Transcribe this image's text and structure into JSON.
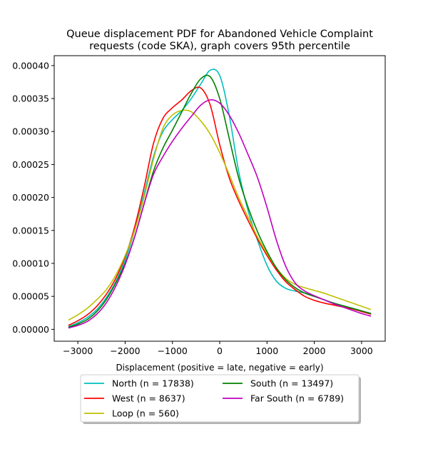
{
  "chart_data": {
    "type": "line",
    "title_line1": "Queue displacement PDF for Abandoned Vehicle Complaint",
    "title_line2": "requests (code SKA), graph covers 95th percentile",
    "xlabel": "Displacement (positive = late, negative = early)",
    "ylabel": "",
    "xlim": [
      -3500,
      3500
    ],
    "ylim": [
      -1.8e-05,
      0.000415
    ],
    "x_ticks": [
      -3000,
      -2000,
      -1000,
      0,
      1000,
      2000,
      3000
    ],
    "y_ticks": [
      0.0,
      5e-05,
      0.0001,
      0.00015,
      0.0002,
      0.00025,
      0.0003,
      0.00035,
      0.0004
    ],
    "x_tick_labels": [
      "−3000",
      "−2000",
      "−1000",
      "0",
      "1000",
      "2000",
      "3000"
    ],
    "y_tick_labels": [
      "0.00000",
      "0.00005",
      "0.00010",
      "0.00015",
      "0.00020",
      "0.00025",
      "0.00030",
      "0.00035",
      "0.00040"
    ],
    "grid": false,
    "legend_placement": "below plot, two columns",
    "x": [
      -3200,
      -3000,
      -2800,
      -2600,
      -2400,
      -2200,
      -2000,
      -1800,
      -1600,
      -1400,
      -1200,
      -1000,
      -800,
      -600,
      -400,
      -200,
      0,
      200,
      400,
      600,
      800,
      1000,
      1200,
      1400,
      1600,
      1800,
      2000,
      2200,
      2400,
      2600,
      2800,
      3000,
      3200
    ],
    "series": [
      {
        "name": "North (n = 17838)",
        "color": "#00bfbf",
        "values": [
          4e-06,
          1e-05,
          1.8e-05,
          3e-05,
          4.8e-05,
          7.2e-05,
          0.000105,
          0.00015,
          0.000205,
          0.000262,
          0.0003,
          0.000318,
          0.000332,
          0.00035,
          0.000372,
          0.000393,
          0.000385,
          0.000325,
          0.00024,
          0.00018,
          0.000135,
          9.7e-05,
          7.3e-05,
          6.2e-05,
          5.8e-05,
          5.5e-05,
          5e-05,
          4.5e-05,
          4e-05,
          3.6e-05,
          3.2e-05,
          2.8e-05,
          2.4e-05
        ]
      },
      {
        "name": "West (n = 8637)",
        "color": "#ff0000",
        "values": [
          6e-06,
          1.3e-05,
          2.2e-05,
          3.5e-05,
          5.3e-05,
          7.7e-05,
          0.00011,
          0.000155,
          0.000215,
          0.000282,
          0.00032,
          0.000336,
          0.000348,
          0.000362,
          0.000366,
          0.00034,
          0.00028,
          0.00023,
          0.000195,
          0.000165,
          0.000137,
          0.000112,
          9e-05,
          7.2e-05,
          6e-05,
          5e-05,
          4.4e-05,
          4e-05,
          3.7e-05,
          3.4e-05,
          3.1e-05,
          2.7e-05,
          2.3e-05
        ]
      },
      {
        "name": "Loop (n = 560)",
        "color": "#bfbf00",
        "values": [
          1.4e-05,
          2.2e-05,
          3.2e-05,
          4.5e-05,
          6e-05,
          8.2e-05,
          0.000112,
          0.00015,
          0.0002,
          0.000258,
          0.000305,
          0.000325,
          0.000332,
          0.00033,
          0.000316,
          0.000296,
          0.000268,
          0.000235,
          0.0002,
          0.00017,
          0.00014,
          0.000115,
          9.3e-05,
          7.7e-05,
          6.8e-05,
          6.3e-05,
          5.9e-05,
          5.5e-05,
          5e-05,
          4.5e-05,
          4e-05,
          3.5e-05,
          3e-05
        ]
      },
      {
        "name": "South (n = 13497)",
        "color": "#008000",
        "values": [
          3e-06,
          8e-06,
          1.5e-05,
          2.7e-05,
          4.5e-05,
          7e-05,
          0.0001,
          0.00014,
          0.00019,
          0.00024,
          0.000275,
          0.000302,
          0.00033,
          0.000358,
          0.00038,
          0.000383,
          0.00035,
          0.00029,
          0.00023,
          0.000185,
          0.000148,
          0.000118,
          9.3e-05,
          7.5e-05,
          6.3e-05,
          5.5e-05,
          5e-05,
          4.5e-05,
          4e-05,
          3.6e-05,
          3.2e-05,
          2.8e-05,
          2.4e-05
        ]
      },
      {
        "name": "Far South (n = 6789)",
        "color": "#bf00bf",
        "values": [
          2e-06,
          6e-06,
          1.2e-05,
          2.3e-05,
          4e-05,
          6.5e-05,
          9.8e-05,
          0.00014,
          0.00019,
          0.000235,
          0.000262,
          0.000285,
          0.000305,
          0.000323,
          0.00034,
          0.000348,
          0.000343,
          0.000325,
          0.000298,
          0.000265,
          0.00023,
          0.000185,
          0.000135,
          9.5e-05,
          7e-05,
          5.8e-05,
          5.1e-05,
          4.5e-05,
          3.9e-05,
          3.4e-05,
          2.9e-05,
          2.4e-05,
          2e-05
        ]
      }
    ]
  }
}
